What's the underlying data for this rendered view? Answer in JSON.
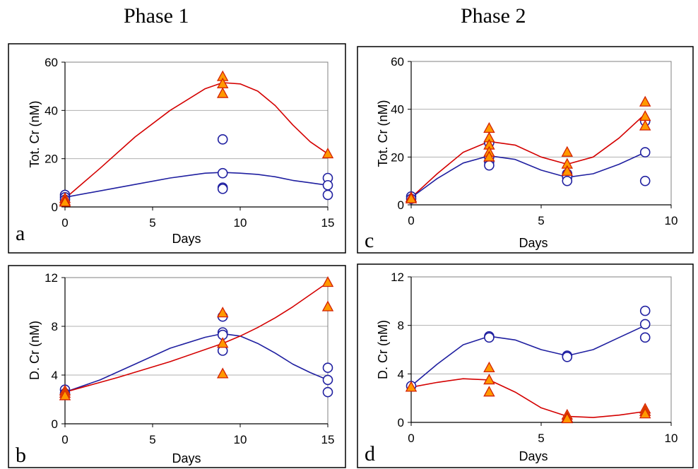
{
  "phase_titles": [
    "Phase 1",
    "Phase 2"
  ],
  "colors": {
    "circle": "#1f1fa0",
    "triangle_fill": "#ff9900",
    "triangle_stroke": "#d42000",
    "red_line": "#d40000",
    "blue_line": "#1f1fa0",
    "grid": "#b0b0b0"
  },
  "chart_data": [
    {
      "type": "scatter",
      "panel": "a",
      "xlabel": "Days",
      "ylabel": "Tot. Cr (nM)",
      "xlim": [
        0,
        15
      ],
      "ylim": [
        0,
        60
      ],
      "xticks": [
        0,
        5,
        10,
        15
      ],
      "yticks": [
        0,
        20,
        40,
        60
      ],
      "grid": "horizontal",
      "series": [
        {
          "marker": "circle",
          "x": [
            0,
            0,
            0,
            9,
            9,
            9,
            9,
            15,
            15,
            15
          ],
          "y": [
            5,
            4,
            3,
            28,
            14,
            8,
            7.5,
            12,
            9,
            5
          ]
        },
        {
          "marker": "triangle",
          "x": [
            0,
            0,
            0,
            9,
            9,
            9,
            15
          ],
          "y": [
            3.5,
            2.5,
            2,
            54,
            51,
            47,
            22
          ]
        }
      ],
      "lines": [
        {
          "color": "red",
          "x": [
            0,
            2,
            4,
            6,
            8,
            9,
            10,
            11,
            12,
            13,
            14,
            15
          ],
          "y": [
            3.5,
            16,
            29,
            40,
            49,
            51.5,
            51,
            48,
            42,
            34,
            27,
            22
          ]
        },
        {
          "color": "blue",
          "x": [
            0,
            3,
            6,
            8,
            9,
            10,
            11,
            12,
            13,
            14,
            15
          ],
          "y": [
            4,
            8,
            12,
            14,
            14.3,
            14,
            13.5,
            12.5,
            11,
            10,
            9
          ]
        }
      ]
    },
    {
      "type": "scatter",
      "panel": "b",
      "xlabel": "Days",
      "ylabel": "D. Cr (nM)",
      "xlim": [
        0,
        15
      ],
      "ylim": [
        0,
        12
      ],
      "xticks": [
        0,
        5,
        10,
        15
      ],
      "yticks": [
        0,
        4,
        8,
        12
      ],
      "grid": "horizontal",
      "series": [
        {
          "marker": "circle",
          "x": [
            0,
            0,
            9,
            9,
            9,
            9,
            15,
            15,
            15
          ],
          "y": [
            2.8,
            2.5,
            8.8,
            7.5,
            7.3,
            6,
            4.6,
            3.6,
            2.6
          ]
        },
        {
          "marker": "triangle",
          "x": [
            0,
            0,
            0,
            9,
            9,
            9,
            15,
            15
          ],
          "y": [
            2.7,
            2.5,
            2.3,
            9.1,
            6.6,
            4.1,
            11.6,
            9.6
          ]
        }
      ],
      "lines": [
        {
          "color": "blue",
          "x": [
            0,
            2,
            4,
            6,
            8,
            9,
            10,
            11,
            12,
            13,
            14,
            15
          ],
          "y": [
            2.6,
            3.6,
            4.9,
            6.2,
            7.1,
            7.4,
            7.2,
            6.6,
            5.8,
            4.9,
            4.2,
            3.6
          ]
        },
        {
          "color": "red",
          "x": [
            0,
            3,
            6,
            9,
            10,
            11,
            12,
            13,
            14,
            15
          ],
          "y": [
            2.6,
            3.8,
            5.1,
            6.6,
            7.2,
            7.9,
            8.7,
            9.6,
            10.6,
            11.6
          ]
        }
      ]
    },
    {
      "type": "scatter",
      "panel": "c",
      "xlabel": "Days",
      "ylabel": "Tot. Cr (nM)",
      "xlim": [
        0,
        10
      ],
      "ylim": [
        0,
        60
      ],
      "xticks": [
        0,
        5,
        10
      ],
      "yticks": [
        0,
        20,
        40,
        60
      ],
      "grid": "horizontal",
      "series": [
        {
          "marker": "circle",
          "x": [
            0,
            0,
            3,
            3,
            3,
            3,
            6,
            6,
            6,
            9,
            9,
            9
          ],
          "y": [
            3.5,
            2.5,
            26,
            20,
            18,
            16.5,
            13,
            11.5,
            10,
            35,
            22,
            10
          ]
        },
        {
          "marker": "triangle",
          "x": [
            0,
            0,
            3,
            3,
            3,
            3,
            3,
            6,
            6,
            6,
            9,
            9,
            9
          ],
          "y": [
            3,
            2.5,
            32,
            28,
            25,
            22,
            20,
            22,
            17,
            14,
            43,
            37,
            33
          ]
        }
      ],
      "lines": [
        {
          "color": "red",
          "x": [
            0,
            1,
            2,
            3,
            4,
            5,
            6,
            7,
            8,
            9
          ],
          "y": [
            3,
            13,
            22,
            26.5,
            25,
            20,
            17,
            20,
            28,
            38
          ]
        },
        {
          "color": "blue",
          "x": [
            0,
            1,
            2,
            3,
            4,
            5,
            6,
            7,
            8,
            9
          ],
          "y": [
            3,
            11,
            17.5,
            20.5,
            19,
            14.5,
            11.5,
            13,
            17,
            22
          ]
        }
      ]
    },
    {
      "type": "scatter",
      "panel": "d",
      "xlabel": "Days",
      "ylabel": "D. Cr (nM)",
      "xlim": [
        0,
        10
      ],
      "ylim": [
        0,
        12
      ],
      "xticks": [
        0,
        5,
        10
      ],
      "yticks": [
        0,
        4,
        8,
        12
      ],
      "grid": "horizontal",
      "series": [
        {
          "marker": "circle",
          "x": [
            0,
            3,
            3,
            6,
            6,
            9,
            9,
            9
          ],
          "y": [
            3,
            7.1,
            7,
            5.5,
            5.4,
            9.2,
            8.1,
            7
          ],
          "show_xtick_0": true
        },
        {
          "marker": "triangle",
          "x": [
            0,
            3,
            3,
            3,
            6,
            6,
            6,
            9,
            9,
            9
          ],
          "y": [
            2.9,
            4.5,
            3.5,
            2.5,
            0.6,
            0.4,
            0.3,
            1.1,
            0.9,
            0.7
          ]
        }
      ],
      "lines": [
        {
          "color": "blue",
          "x": [
            0,
            1,
            2,
            3,
            4,
            5,
            6,
            7,
            8,
            9
          ],
          "y": [
            3,
            4.8,
            6.4,
            7.1,
            6.8,
            6,
            5.5,
            6,
            7,
            8
          ]
        },
        {
          "color": "red",
          "x": [
            0,
            1,
            2,
            3,
            4,
            5,
            6,
            7,
            8,
            9
          ],
          "y": [
            2.9,
            3.3,
            3.6,
            3.5,
            2.5,
            1.2,
            0.5,
            0.4,
            0.6,
            0.9
          ]
        }
      ]
    }
  ]
}
